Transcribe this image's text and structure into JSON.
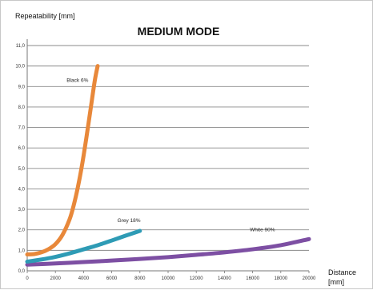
{
  "chart_data": {
    "type": "line",
    "title": "MEDIUM MODE",
    "ylabel": "Repeatability [mm]",
    "xlabel_line1": "Distance",
    "xlabel_line2": "[mm]",
    "xlim": [
      0,
      20000
    ],
    "ylim": [
      0,
      11
    ],
    "x_ticks": [
      0,
      2000,
      4000,
      6000,
      8000,
      10000,
      12000,
      14000,
      16000,
      18000,
      20000
    ],
    "x_tick_labels": [
      "0",
      "2000",
      "4000",
      "6000",
      "8000",
      "10000",
      "12000",
      "14000",
      "16000",
      "18000",
      "20000"
    ],
    "y_ticks": [
      0,
      1,
      2,
      3,
      4,
      5,
      6,
      7,
      8,
      9,
      10,
      11
    ],
    "y_tick_labels": [
      "0,0",
      "1,0",
      "2,0",
      "3,0",
      "4,0",
      "5,0",
      "6,0",
      "7,0",
      "8,0",
      "9,0",
      "10,0",
      "11,0"
    ],
    "grid": true,
    "series": [
      {
        "name": "Black 6%",
        "color": "#e8883a",
        "x": [
          0,
          500,
          1000,
          1500,
          2000,
          2500,
          3000,
          3300,
          3600,
          3900,
          4200,
          4500,
          4800,
          5000
        ],
        "y": [
          0.8,
          0.82,
          0.9,
          1.05,
          1.3,
          1.75,
          2.5,
          3.2,
          4.1,
          5.2,
          6.5,
          7.9,
          9.3,
          10.0
        ]
      },
      {
        "name": "Grey 18%",
        "color": "#2e9bb5",
        "x": [
          0,
          1000,
          2000,
          3000,
          4000,
          5000,
          6000,
          7000,
          8000
        ],
        "y": [
          0.45,
          0.55,
          0.68,
          0.85,
          1.05,
          1.25,
          1.48,
          1.72,
          1.95
        ]
      },
      {
        "name": "White 90%",
        "color": "#7d4fa3",
        "x": [
          0,
          2000,
          4000,
          6000,
          8000,
          10000,
          12000,
          14000,
          16000,
          18000,
          20000
        ],
        "y": [
          0.3,
          0.36,
          0.43,
          0.5,
          0.58,
          0.67,
          0.78,
          0.9,
          1.05,
          1.25,
          1.55
        ]
      }
    ]
  }
}
